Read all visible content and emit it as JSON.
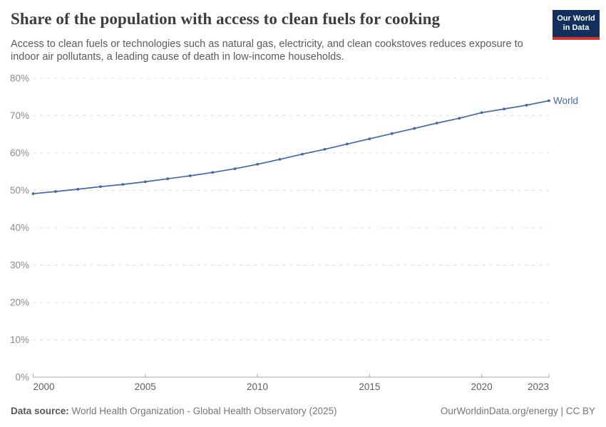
{
  "header": {
    "title": "Share of the population with access to clean fuels for cooking",
    "subtitle": "Access to clean fuels or technologies such as natural gas, electricity, and clean cookstoves reduces exposure to\nindoor air pollutants, a leading cause of death in low-income households.",
    "logo": {
      "line1": "Our World",
      "line2": "in Data",
      "bg_color": "#12305b",
      "accent_color": "#d7352c"
    }
  },
  "chart_data": {
    "type": "line",
    "title": "Share of the population with access to clean fuels for cooking",
    "xlabel": "",
    "ylabel": "",
    "x": [
      2000,
      2001,
      2002,
      2003,
      2004,
      2005,
      2006,
      2007,
      2008,
      2009,
      2010,
      2011,
      2012,
      2013,
      2014,
      2015,
      2016,
      2017,
      2018,
      2019,
      2020,
      2021,
      2022,
      2023
    ],
    "series": [
      {
        "name": "World",
        "color": "#4268a9",
        "values": [
          49.1,
          49.7,
          50.3,
          51.0,
          51.6,
          52.3,
          53.1,
          53.9,
          54.8,
          55.8,
          57.0,
          58.3,
          59.7,
          61.0,
          62.4,
          63.8,
          65.2,
          66.6,
          68.0,
          69.3,
          70.8,
          71.8,
          72.8,
          74.0
        ]
      }
    ],
    "xlim": [
      2000,
      2023
    ],
    "ylim": [
      0,
      80
    ],
    "xticks": [
      2000,
      2005,
      2010,
      2015,
      2020,
      2023
    ],
    "yticks": [
      0,
      10,
      20,
      30,
      40,
      50,
      60,
      70,
      80
    ],
    "ytick_suffix": "%",
    "grid": "horizontal-dashed",
    "legend_position": "end-of-line",
    "end_label": "World"
  },
  "footer": {
    "datasource_label": "Data source:",
    "datasource_text": "World Health Organization - Global Health Observatory (2025)",
    "link_text": "OurWorldinData.org/energy | CC BY"
  },
  "colors": {
    "line_blue": "#4268a9",
    "grid_gray": "#dcdcdc",
    "axis_gray": "#a5a5a5",
    "title_text": "#3d3d3d",
    "subtitle_text": "#5a5a5a"
  }
}
